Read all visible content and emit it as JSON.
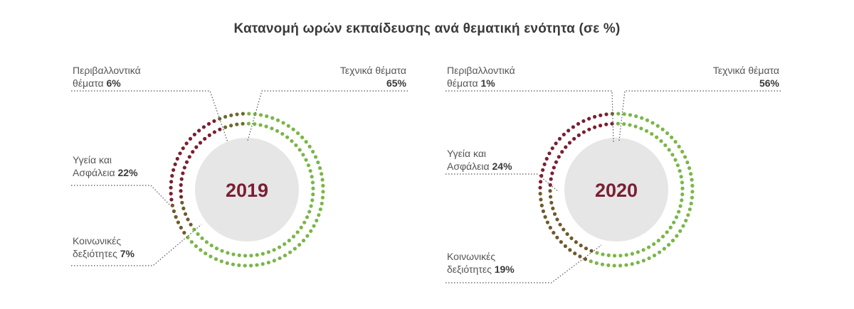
{
  "title": "Κατανομή ωρών εκπαίδευσης ανά θεματική ενότητα (σε %)",
  "colors": {
    "Τεχνικά θέματα": "#7ab648",
    "Περιβαλλοντικά θέματα": "#6b6a2c",
    "Υγεία και Ασφάλεια": "#7a1f32",
    "Κοινωνικές δεξιότητες": "#6e5a2a",
    "center_fill": "#e6e6e6",
    "year_text": "#7a1f32"
  },
  "chart_data": [
    {
      "type": "pie",
      "year": "2019",
      "slices": [
        {
          "category": "Τεχνικά θέματα",
          "label_lines": [
            "Τεχνικά θέματα"
          ],
          "pct_text": "65%",
          "value": 65
        },
        {
          "category": "Κοινωνικές δεξιότητες",
          "label_lines": [
            "Κοινωνικές",
            "δεξιότητες"
          ],
          "pct_text": "7%",
          "value": 7
        },
        {
          "category": "Υγεία και Ασφάλεια",
          "label_lines": [
            "Υγεία και",
            "Ασφάλεια"
          ],
          "pct_text": "22%",
          "value": 22
        },
        {
          "category": "Περιβαλλοντικά θέματα",
          "label_lines": [
            "Περιβαλλοντικά",
            "θέματα"
          ],
          "pct_text": "6%",
          "value": 6
        }
      ]
    },
    {
      "type": "pie",
      "year": "2020",
      "slices": [
        {
          "category": "Τεχνικά θέματα",
          "label_lines": [
            "Τεχνικά θέματα"
          ],
          "pct_text": "56%",
          "value": 56
        },
        {
          "category": "Κοινωνικές δεξιότητες",
          "label_lines": [
            "Κοινωνικές",
            "δεξιότητες"
          ],
          "pct_text": "19%",
          "value": 19
        },
        {
          "category": "Υγεία και Ασφάλεια",
          "label_lines": [
            "Υγεία και",
            "Ασφάλεια"
          ],
          "pct_text": "24%",
          "value": 24
        },
        {
          "category": "Περιβαλλοντικά θέματα",
          "label_lines": [
            "Περιβαλλοντικά",
            "θέματα"
          ],
          "pct_text": "1%",
          "value": 1
        }
      ]
    }
  ]
}
